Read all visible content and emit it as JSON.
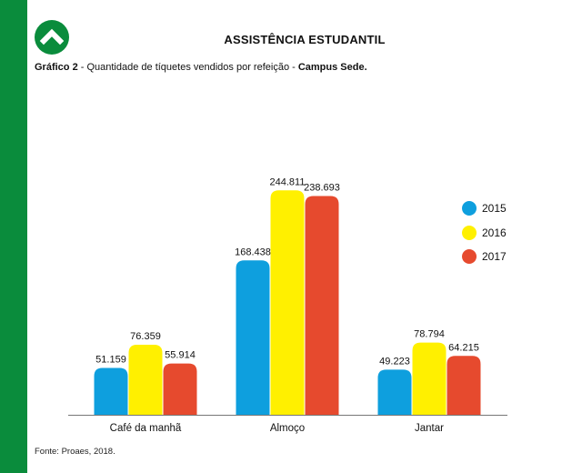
{
  "header": {
    "title": "ASSISTÊNCIA ESTUDANTIL",
    "caption_prefix": "Gráfico 2",
    "caption_text": " - Quantidade de tíquetes vendidos por refeição - ",
    "caption_campus": "Campus Sede."
  },
  "footer": {
    "source": "Fonte: Proaes, 2018."
  },
  "colors": {
    "brand_green": "#0a8c3c",
    "series_2015": "#0e9fde",
    "series_2016": "#fff000",
    "series_2017": "#e64a2e"
  },
  "icons": {
    "logo": "chevron-up-icon"
  },
  "chart_data": {
    "type": "bar",
    "categories": [
      "Café da manhã",
      "Almoço",
      "Jantar"
    ],
    "series": [
      {
        "name": "2015",
        "color": "#0e9fde",
        "values": [
          51159,
          168438,
          49223
        ],
        "labels": [
          "51.159",
          "168.438",
          "49.223"
        ]
      },
      {
        "name": "2016",
        "color": "#fff000",
        "values": [
          76359,
          244811,
          78794
        ],
        "labels": [
          "76.359",
          "244.811",
          "78.794"
        ]
      },
      {
        "name": "2017",
        "color": "#e64a2e",
        "values": [
          55914,
          238693,
          64215
        ],
        "labels": [
          "55.914",
          "238.693",
          "64.215"
        ]
      }
    ],
    "title": "",
    "xlabel": "",
    "ylabel": "",
    "ylim": [
      0,
      260000
    ],
    "grid": false,
    "legend": "right"
  }
}
